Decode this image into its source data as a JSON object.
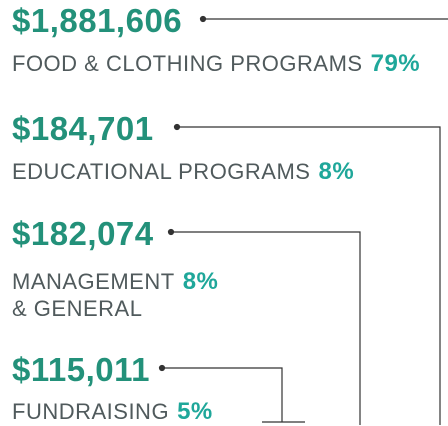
{
  "items": [
    {
      "amount": "$1,881,606",
      "label": [
        "FOOD & CLOTHING PROGRAMS"
      ],
      "percent": "79%"
    },
    {
      "amount": "$184,701",
      "label": [
        "EDUCATIONAL PROGRAMS"
      ],
      "percent": "8%"
    },
    {
      "amount": "$182,074",
      "label": [
        "MANAGEMENT",
        "& GENERAL"
      ],
      "percent": "8%"
    },
    {
      "amount": "$115,011",
      "label": [
        "FUNDRAISING"
      ],
      "percent": "5%"
    }
  ]
}
